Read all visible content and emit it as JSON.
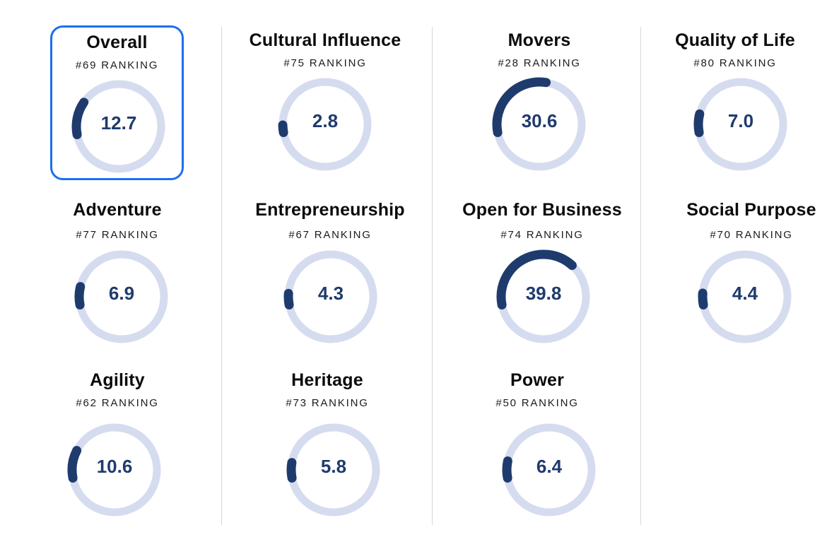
{
  "colors": {
    "track": "#d6dcef",
    "progress": "#1f3b6e",
    "value_text": "#1f3b6e",
    "selected_border": "#1a6ff0"
  },
  "scale_max": 100,
  "metrics": [
    {
      "title": "Overall",
      "ranking": "#69 RANKING",
      "value": "12.7",
      "score": 12.7,
      "selected": true
    },
    {
      "title": "Cultural Influence",
      "ranking": "#75 RANKING",
      "value": "2.8",
      "score": 2.8,
      "selected": false
    },
    {
      "title": "Movers",
      "ranking": "#28 RANKING",
      "value": "30.6",
      "score": 30.6,
      "selected": false
    },
    {
      "title": "Quality of Life",
      "ranking": "#80 RANKING",
      "value": "7.0",
      "score": 7.0,
      "selected": false
    },
    {
      "title": "Adventure",
      "ranking": "#77 RANKING",
      "value": "6.9",
      "score": 6.9,
      "selected": false
    },
    {
      "title": "Entrepreneurship",
      "ranking": "#67 RANKING",
      "value": "4.3",
      "score": 4.3,
      "selected": false
    },
    {
      "title": "Open for Business",
      "ranking": "#74 RANKING",
      "value": "39.8",
      "score": 39.8,
      "selected": false
    },
    {
      "title": "Social Purpose",
      "ranking": "#70 RANKING",
      "value": "4.4",
      "score": 4.4,
      "selected": false
    },
    {
      "title": "Agility",
      "ranking": "#62 RANKING",
      "value": "10.6",
      "score": 10.6,
      "selected": false
    },
    {
      "title": "Heritage",
      "ranking": "#73 RANKING",
      "value": "5.8",
      "score": 5.8,
      "selected": false
    },
    {
      "title": "Power",
      "ranking": "#50 RANKING",
      "value": "6.4",
      "score": 6.4,
      "selected": false
    }
  ]
}
